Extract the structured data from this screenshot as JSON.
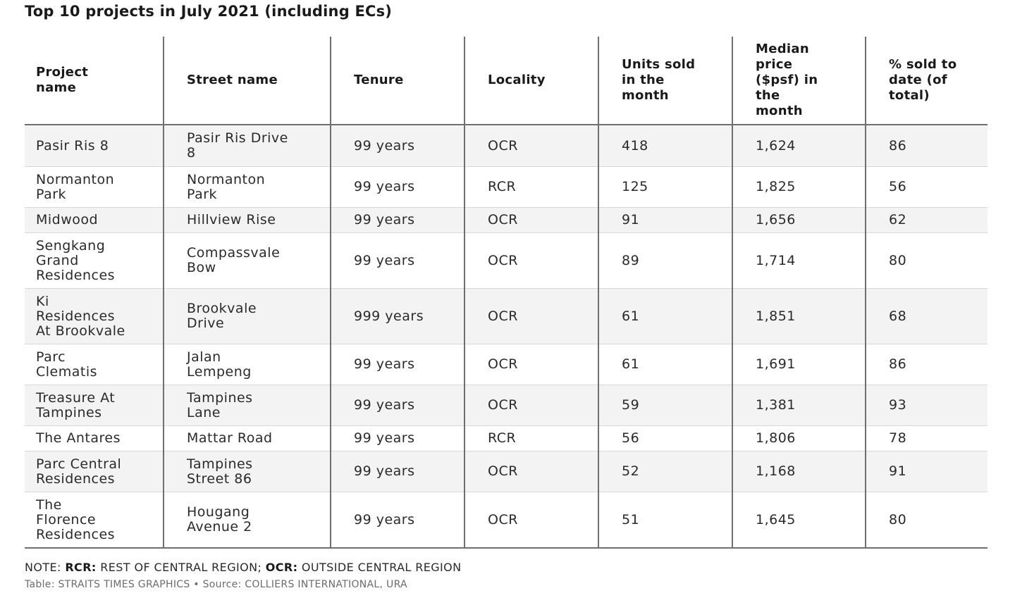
{
  "chart_data": {
    "type": "table",
    "title": "Top 10 projects in July 2021 (including ECs)",
    "columns": [
      "Project name",
      "Street name",
      "Tenure",
      "Locality",
      "Units sold in the month",
      "Median price ($psf) in the month",
      "% sold to date (of total)"
    ],
    "rows": [
      [
        "Pasir Ris 8",
        "Pasir Ris Drive 8",
        "99 years",
        "OCR",
        "418",
        "1,624",
        "86"
      ],
      [
        "Normanton Park",
        "Normanton Park",
        "99 years",
        "RCR",
        "125",
        "1,825",
        "56"
      ],
      [
        "Midwood",
        "Hillview Rise",
        "99 years",
        "OCR",
        "91",
        "1,656",
        "62"
      ],
      [
        "Sengkang Grand Residences",
        "Compassvale Bow",
        "99 years",
        "OCR",
        "89",
        "1,714",
        "80"
      ],
      [
        "Ki Residences At Brookvale",
        "Brookvale Drive",
        "999 years",
        "OCR",
        "61",
        "1,851",
        "68"
      ],
      [
        "Parc Clematis",
        "Jalan Lempeng",
        "99 years",
        "OCR",
        "61",
        "1,691",
        "86"
      ],
      [
        "Treasure At Tampines",
        "Tampines Lane",
        "99 years",
        "OCR",
        "59",
        "1,381",
        "93"
      ],
      [
        "The Antares",
        "Mattar Road",
        "99 years",
        "RCR",
        "56",
        "1,806",
        "78"
      ],
      [
        "Parc Central Residences",
        "Tampines Street 86",
        "99 years",
        "OCR",
        "52",
        "1,168",
        "91"
      ],
      [
        "The Florence Residences",
        "Hougang Avenue 2",
        "99 years",
        "OCR",
        "51",
        "1,645",
        "80"
      ]
    ]
  },
  "note": {
    "prefix": "NOTE: ",
    "rcr_key": "RCR:",
    "rcr_text": " REST OF CENTRAL REGION; ",
    "ocr_key": "OCR:",
    "ocr_text": " OUTSIDE CENTRAL REGION"
  },
  "source": "Table: STRAITS TIMES GRAPHICS • Source: COLLIERS INTERNATIONAL, URA"
}
